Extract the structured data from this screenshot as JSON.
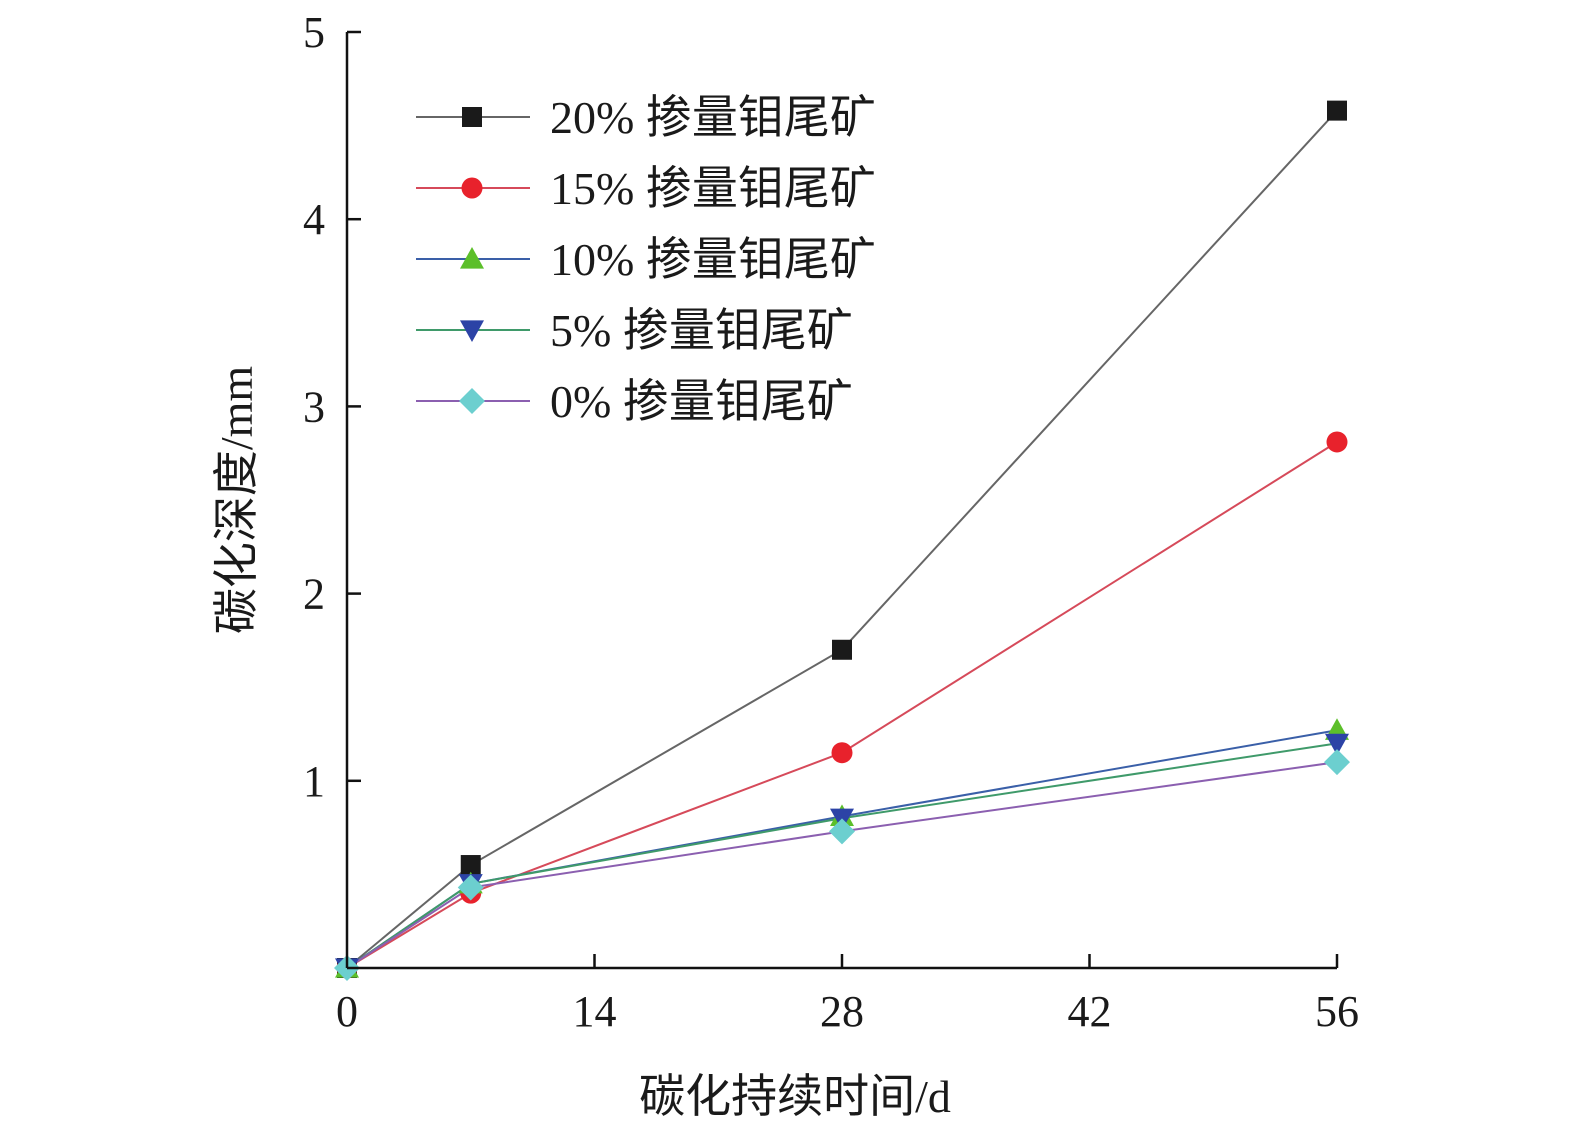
{
  "chart_data": {
    "type": "line",
    "title": "",
    "xlabel": "碳化持续时间/d",
    "ylabel": "碳化深度/mm",
    "xlim": [
      0,
      56
    ],
    "ylim": [
      0,
      5
    ],
    "xticks": [
      0,
      14,
      28,
      42,
      56
    ],
    "yticks": [
      1,
      2,
      3,
      4,
      5
    ],
    "x_tick_labels": [
      "0",
      "14",
      "28",
      "42",
      "56"
    ],
    "y_tick_labels": [
      "1",
      "2",
      "3",
      "4",
      "5"
    ],
    "grid": false,
    "legend_position": "top-left",
    "x": [
      0,
      7,
      28,
      56
    ],
    "series": [
      {
        "name": "20% 掺量钼尾矿",
        "values": [
          0,
          0.55,
          1.7,
          4.58
        ],
        "line_color": "#666666",
        "marker_color": "#1a1a1a",
        "marker": "square"
      },
      {
        "name": "15% 掺量钼尾矿",
        "values": [
          0,
          0.4,
          1.15,
          2.81
        ],
        "line_color": "#d64a5a",
        "marker_color": "#e8222c",
        "marker": "circle"
      },
      {
        "name": "10% 掺量钼尾矿",
        "values": [
          0,
          0.45,
          0.81,
          1.27
        ],
        "line_color": "#3a5fa8",
        "marker_color": "#5cbf2a",
        "marker": "triangle-up"
      },
      {
        "name": "5% 掺量钼尾矿",
        "values": [
          0,
          0.45,
          0.8,
          1.2
        ],
        "line_color": "#3f9a6a",
        "marker_color": "#2c43a6",
        "marker": "triangle-down"
      },
      {
        "name": "0% 掺量钼尾矿",
        "values": [
          0,
          0.43,
          0.73,
          1.1
        ],
        "line_color": "#8b5fb0",
        "marker_color": "#6ccfcf",
        "marker": "diamond"
      }
    ]
  }
}
